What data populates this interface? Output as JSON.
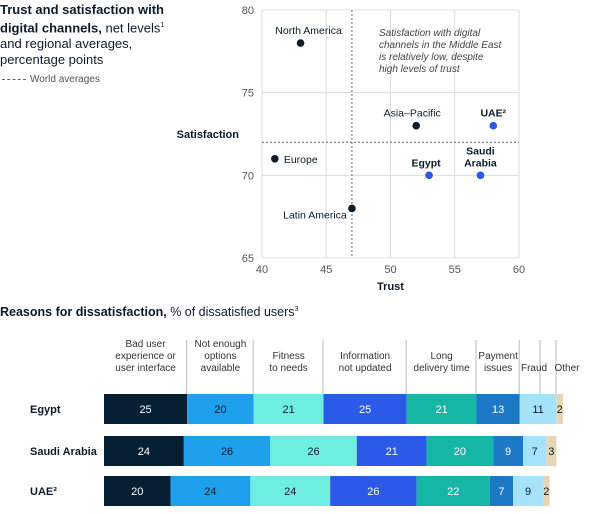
{
  "header": {
    "title_bold": "Trust and satisfaction with digital channels,",
    "title_rest": " net levels",
    "title_sup": "1",
    "title_line2": "and regional averages, percentage points"
  },
  "legend": {
    "world_averages": "World averages"
  },
  "bottom_header": {
    "title_bold": "Reasons for dissatisfaction,",
    "title_rest": " % of dissatisfied users",
    "title_sup": "3"
  },
  "chart_data": [
    {
      "type": "scatter",
      "xlabel": "Trust",
      "ylabel": "Satisfaction",
      "xlim": [
        40,
        60
      ],
      "ylim": [
        65,
        80
      ],
      "xticks": [
        "40",
        "45",
        "50",
        "55",
        "60"
      ],
      "yticks": [
        "65",
        "70",
        "75",
        "80"
      ],
      "world_average": {
        "x": 47,
        "y": 72
      },
      "annotation": "Satisfaction with digital channels in the Middle East is relatively low, despite high levels of trust",
      "points": [
        {
          "label": "North America",
          "x": 43,
          "y": 78,
          "color": "#0b1b2b"
        },
        {
          "label": "Asia–Pacific",
          "x": 52,
          "y": 73,
          "color": "#0b1b2b"
        },
        {
          "label": "UAE²",
          "x": 58,
          "y": 73,
          "color": "#2b59e8"
        },
        {
          "label": "Europe",
          "x": 41,
          "y": 71,
          "color": "#0b1b2b"
        },
        {
          "label": "Egypt",
          "x": 53,
          "y": 70,
          "color": "#2b59e8"
        },
        {
          "label": "Saudi Arabia",
          "x": 57,
          "y": 70,
          "color": "#2b59e8"
        },
        {
          "label": "Latin America",
          "x": 47,
          "y": 68,
          "color": "#0b1b2b"
        }
      ]
    },
    {
      "type": "bar",
      "orientation": "horizontal-stacked",
      "categories": [
        "Egypt",
        "Saudi Arabia",
        "UAE²"
      ],
      "series": [
        {
          "name": "Bad user experience or user interface",
          "color": "#061f33",
          "values": [
            25,
            24,
            20
          ]
        },
        {
          "name": "Not enough options available",
          "color": "#1ea0ec",
          "values": [
            20,
            26,
            24
          ]
        },
        {
          "name": "Fitness to needs",
          "color": "#6eeee0",
          "values": [
            21,
            26,
            24
          ]
        },
        {
          "name": "Information not updated",
          "color": "#2b59e8",
          "values": [
            25,
            21,
            26
          ]
        },
        {
          "name": "Long delivery time",
          "color": "#16b6a6",
          "values": [
            21,
            20,
            22
          ]
        },
        {
          "name": "Payment issues",
          "color": "#1d78c5",
          "values": [
            13,
            9,
            7
          ]
        },
        {
          "name": "Fraud",
          "color": "#a6e2fb",
          "values": [
            11,
            7,
            9
          ]
        },
        {
          "name": "Other",
          "color": "#e6d6b6",
          "values": [
            2,
            3,
            2
          ]
        }
      ]
    }
  ],
  "colors": {
    "text_dark": "#0b1b2b",
    "grid": "#dddddd",
    "dashed": "#666666"
  }
}
